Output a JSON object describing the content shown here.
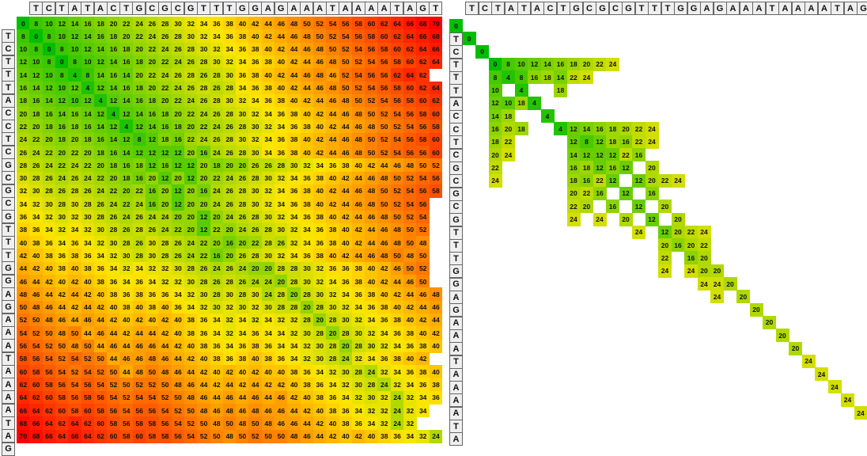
{
  "top_sequence": "TCTATACTGCGCGTTTGGAGAAATAAAATAGT",
  "left_sequence": "TTCTTTACCTCGCGCGTTTGGAGAAATAAAATAGT",
  "left_matrix": {
    "rows": [
      [
        0,
        8,
        10,
        12,
        14,
        16,
        18,
        20,
        22,
        24,
        26,
        28,
        30,
        32,
        34,
        36,
        38,
        40,
        42,
        44,
        46,
        48,
        50,
        52,
        54,
        56,
        58,
        60,
        62,
        64,
        66,
        68,
        70
      ],
      [
        8,
        0,
        8,
        10,
        12,
        14,
        16,
        18,
        20,
        22,
        24,
        26,
        28,
        30,
        32,
        34,
        36,
        38,
        40,
        42,
        44,
        46,
        48,
        50,
        52,
        54,
        56,
        58,
        60,
        62,
        64,
        66,
        68
      ],
      [
        10,
        8,
        0,
        8,
        10,
        12,
        14,
        16,
        18,
        20,
        22,
        24,
        26,
        28,
        30,
        32,
        34,
        36,
        38,
        40,
        42,
        44,
        46,
        48,
        50,
        52,
        54,
        56,
        58,
        60,
        62,
        64,
        66
      ],
      [
        12,
        10,
        8,
        0,
        8,
        10,
        12,
        14,
        16,
        18,
        20,
        22,
        24,
        26,
        28,
        30,
        32,
        34,
        36,
        38,
        40,
        42,
        44,
        46,
        48,
        50,
        52,
        54,
        56,
        58,
        60,
        62,
        64
      ],
      [
        14,
        12,
        10,
        8,
        4,
        8,
        14,
        16,
        14,
        20,
        22,
        24,
        26,
        28,
        26,
        28,
        30,
        36,
        38,
        40,
        42,
        44,
        46,
        48,
        46,
        52,
        54,
        56,
        56,
        62,
        64,
        62
      ],
      [
        16,
        14,
        12,
        10,
        12,
        4,
        12,
        14,
        16,
        18,
        20,
        22,
        24,
        26,
        28,
        26,
        28,
        34,
        36,
        38,
        40,
        42,
        44,
        46,
        48,
        50,
        52,
        54,
        56,
        58,
        60,
        62,
        64
      ],
      [
        18,
        16,
        14,
        12,
        10,
        12,
        4,
        12,
        14,
        16,
        18,
        20,
        22,
        24,
        26,
        28,
        30,
        32,
        34,
        36,
        38,
        40,
        42,
        44,
        46,
        48,
        50,
        52,
        54,
        56,
        58,
        60,
        62
      ],
      [
        20,
        18,
        16,
        14,
        16,
        14,
        12,
        4,
        12,
        14,
        16,
        18,
        20,
        22,
        24,
        26,
        28,
        30,
        32,
        34,
        36,
        38,
        40,
        42,
        44,
        46,
        48,
        50,
        52,
        54,
        56,
        58,
        60
      ],
      [
        22,
        20,
        18,
        16,
        18,
        16,
        14,
        12,
        4,
        12,
        14,
        16,
        18,
        20,
        22,
        24,
        26,
        28,
        30,
        32,
        34,
        36,
        38,
        40,
        42,
        44,
        46,
        48,
        50,
        52,
        54,
        56,
        58
      ],
      [
        24,
        22,
        20,
        18,
        20,
        18,
        16,
        14,
        12,
        8,
        12,
        18,
        16,
        22,
        24,
        26,
        28,
        30,
        32,
        34,
        36,
        38,
        40,
        42,
        44,
        46,
        48,
        50,
        52,
        54,
        56,
        58,
        60
      ],
      [
        26,
        24,
        22,
        20,
        22,
        20,
        18,
        16,
        14,
        12,
        12,
        12,
        12,
        20,
        16,
        24,
        26,
        28,
        30,
        34,
        36,
        38,
        40,
        42,
        44,
        46,
        48,
        50,
        52,
        54,
        56,
        56,
        60
      ],
      [
        28,
        26,
        24,
        22,
        24,
        22,
        20,
        18,
        16,
        18,
        12,
        16,
        12,
        12,
        20,
        18,
        20,
        20,
        26,
        26,
        28,
        30,
        32,
        34,
        36,
        38,
        40,
        42,
        44,
        46,
        48,
        50,
        52,
        54,
        56,
        58
      ],
      [
        30,
        28,
        26,
        24,
        26,
        24,
        22,
        20,
        18,
        16,
        20,
        12,
        20,
        12,
        20,
        22,
        24,
        26,
        28,
        30,
        32,
        34,
        36,
        38,
        40,
        42,
        44,
        46,
        48,
        50,
        52,
        54,
        56
      ],
      [
        32,
        30,
        28,
        26,
        28,
        26,
        24,
        22,
        20,
        22,
        16,
        20,
        12,
        20,
        16,
        24,
        26,
        28,
        30,
        32,
        34,
        36,
        38,
        40,
        42,
        44,
        46,
        48,
        50,
        52,
        54,
        56,
        58
      ],
      [
        34,
        32,
        30,
        28,
        30,
        28,
        26,
        24,
        22,
        24,
        16,
        20,
        12,
        20,
        20,
        24,
        26,
        28,
        30,
        32,
        34,
        36,
        38,
        40,
        42,
        44,
        46,
        48,
        50,
        52,
        54,
        56
      ],
      [
        36,
        34,
        32,
        30,
        32,
        30,
        28,
        26,
        24,
        26,
        24,
        24,
        20,
        20,
        12,
        20,
        24,
        26,
        28,
        30,
        32,
        34,
        36,
        38,
        40,
        42,
        44,
        46,
        48,
        50,
        52,
        54
      ],
      [
        38,
        36,
        34,
        32,
        34,
        32,
        30,
        28,
        26,
        28,
        26,
        24,
        22,
        20,
        12,
        22,
        20,
        24,
        26,
        28,
        30,
        32,
        34,
        36,
        38,
        40,
        42,
        44,
        46,
        48,
        50,
        52
      ],
      [
        40,
        38,
        36,
        34,
        36,
        34,
        32,
        30,
        28,
        26,
        30,
        28,
        26,
        24,
        22,
        20,
        16,
        20,
        22,
        28,
        26,
        32,
        34,
        36,
        38,
        40,
        42,
        44,
        46,
        48,
        50,
        48
      ],
      [
        42,
        40,
        38,
        36,
        38,
        36,
        34,
        32,
        30,
        28,
        30,
        28,
        26,
        24,
        22,
        16,
        20,
        26,
        28,
        30,
        32,
        34,
        36,
        38,
        40,
        42,
        44,
        46,
        48,
        50,
        48,
        50
      ],
      [
        44,
        42,
        40,
        38,
        40,
        38,
        36,
        34,
        32,
        34,
        32,
        32,
        30,
        28,
        26,
        24,
        26,
        24,
        20,
        20,
        28,
        28,
        30,
        32,
        36,
        36,
        38,
        40,
        42,
        46,
        50,
        52
      ],
      [
        46,
        44,
        42,
        40,
        42,
        40,
        38,
        36,
        34,
        36,
        34,
        32,
        32,
        30,
        28,
        26,
        28,
        26,
        24,
        24,
        20,
        28,
        30,
        32,
        34,
        36,
        38,
        40,
        42,
        44,
        46,
        50
      ],
      [
        48,
        46,
        44,
        42,
        44,
        42,
        40,
        38,
        36,
        38,
        36,
        36,
        34,
        32,
        30,
        28,
        30,
        28,
        30,
        24,
        28,
        20,
        28,
        30,
        32,
        34,
        36,
        38,
        40,
        42,
        44,
        46,
        48
      ],
      [
        50,
        48,
        46,
        44,
        42,
        44,
        42,
        40,
        38,
        40,
        38,
        40,
        36,
        34,
        32,
        30,
        32,
        30,
        32,
        30,
        28,
        28,
        20,
        28,
        30,
        32,
        34,
        36,
        38,
        40,
        42,
        44,
        46
      ],
      [
        52,
        50,
        48,
        46,
        44,
        46,
        44,
        42,
        40,
        42,
        40,
        42,
        40,
        38,
        36,
        34,
        32,
        34,
        32,
        34,
        32,
        32,
        28,
        20,
        28,
        30,
        32,
        34,
        36,
        38,
        40,
        42,
        44
      ],
      [
        54,
        52,
        50,
        48,
        50,
        44,
        46,
        44,
        42,
        44,
        44,
        42,
        40,
        38,
        36,
        34,
        32,
        34,
        36,
        34,
        34,
        32,
        30,
        28,
        20,
        28,
        30,
        32,
        34,
        36,
        38,
        40,
        42
      ],
      [
        56,
        54,
        52,
        50,
        48,
        50,
        44,
        46,
        44,
        46,
        46,
        44,
        42,
        40,
        38,
        36,
        34,
        36,
        38,
        36,
        34,
        34,
        32,
        30,
        28,
        20,
        28,
        30,
        32,
        34,
        36,
        38,
        40
      ],
      [
        58,
        56,
        54,
        52,
        54,
        52,
        50,
        44,
        46,
        46,
        48,
        46,
        44,
        42,
        40,
        38,
        36,
        38,
        40,
        38,
        36,
        34,
        32,
        30,
        28,
        24,
        32,
        34,
        36,
        38,
        40,
        42
      ],
      [
        60,
        58,
        56,
        54,
        52,
        54,
        52,
        50,
        44,
        48,
        50,
        48,
        46,
        44,
        42,
        40,
        42,
        40,
        42,
        40,
        40,
        38,
        36,
        34,
        32,
        30,
        28,
        24,
        32,
        34,
        36,
        38,
        40
      ],
      [
        62,
        60,
        58,
        56,
        54,
        56,
        54,
        52,
        50,
        52,
        52,
        50,
        48,
        46,
        44,
        42,
        44,
        42,
        44,
        42,
        42,
        40,
        38,
        36,
        34,
        32,
        30,
        28,
        24,
        32,
        34,
        36,
        38
      ],
      [
        64,
        62,
        60,
        58,
        56,
        58,
        56,
        54,
        52,
        54,
        54,
        52,
        50,
        48,
        46,
        44,
        46,
        44,
        46,
        44,
        46,
        42,
        40,
        38,
        36,
        34,
        32,
        30,
        32,
        24,
        32,
        34,
        36
      ],
      [
        66,
        64,
        62,
        60,
        58,
        60,
        58,
        56,
        54,
        56,
        56,
        54,
        52,
        50,
        48,
        46,
        48,
        46,
        48,
        46,
        46,
        44,
        42,
        40,
        38,
        36,
        34,
        32,
        32,
        24,
        32,
        34
      ],
      [
        68,
        66,
        64,
        62,
        64,
        62,
        60,
        58,
        56,
        58,
        58,
        56,
        54,
        52,
        50,
        48,
        50,
        48,
        50,
        48,
        46,
        46,
        44,
        42,
        40,
        38,
        36,
        34,
        32,
        24,
        32
      ],
      [
        70,
        68,
        66,
        64,
        66,
        64,
        62,
        60,
        58,
        60,
        58,
        58,
        56,
        54,
        52,
        50,
        48,
        50,
        52,
        50,
        50,
        48,
        46,
        44,
        42,
        40,
        42,
        40,
        38,
        36,
        34,
        32,
        24
      ]
    ]
  },
  "right_matrix": {
    "rows": [
      [
        [
          0,
          0
        ]
      ],
      [
        [
          1,
          0
        ]
      ],
      [
        [
          2,
          0
        ]
      ],
      [
        [
          3,
          0
        ],
        [
          4,
          8
        ],
        [
          5,
          10
        ],
        [
          6,
          12
        ],
        [
          7,
          14
        ],
        [
          8,
          16
        ],
        [
          9,
          18
        ],
        [
          10,
          20
        ],
        [
          11,
          22
        ],
        [
          12,
          24
        ]
      ],
      [
        [
          3,
          8
        ],
        [
          4,
          4
        ],
        [
          5,
          8
        ],
        [
          6,
          16
        ],
        [
          7,
          18
        ],
        [
          8,
          14
        ],
        [
          9,
          22
        ],
        [
          10,
          24
        ]
      ],
      [
        [
          3,
          10
        ],
        [
          5,
          4
        ],
        [
          8,
          18
        ]
      ],
      [
        [
          3,
          12
        ],
        [
          4,
          10
        ],
        [
          5,
          18
        ],
        [
          6,
          4
        ]
      ],
      [
        [
          3,
          14
        ],
        [
          4,
          18
        ],
        [
          7,
          4
        ]
      ],
      [
        [
          3,
          16
        ],
        [
          4,
          20
        ],
        [
          5,
          18
        ],
        [
          8,
          4
        ],
        [
          9,
          12
        ],
        [
          10,
          14
        ],
        [
          11,
          16
        ],
        [
          12,
          18
        ],
        [
          13,
          20
        ],
        [
          14,
          22
        ],
        [
          15,
          24
        ]
      ],
      [
        [
          3,
          18
        ],
        [
          4,
          22
        ],
        [
          9,
          12
        ],
        [
          10,
          8
        ],
        [
          11,
          12
        ],
        [
          12,
          18
        ],
        [
          13,
          16
        ],
        [
          14,
          22
        ],
        [
          15,
          24
        ]
      ],
      [
        [
          3,
          20
        ],
        [
          4,
          24
        ],
        [
          9,
          14
        ],
        [
          10,
          12
        ],
        [
          11,
          12
        ],
        [
          12,
          12
        ],
        [
          13,
          22
        ],
        [
          14,
          16
        ]
      ],
      [
        [
          3,
          22
        ],
        [
          9,
          16
        ],
        [
          10,
          18
        ],
        [
          11,
          12
        ],
        [
          12,
          16
        ],
        [
          13,
          12
        ],
        [
          15,
          20
        ]
      ],
      [
        [
          3,
          24
        ],
        [
          9,
          18
        ],
        [
          10,
          16
        ],
        [
          11,
          22
        ],
        [
          12,
          12
        ],
        [
          14,
          12
        ],
        [
          15,
          20
        ],
        [
          16,
          22
        ],
        [
          17,
          24
        ]
      ],
      [
        [
          9,
          20
        ],
        [
          10,
          22
        ],
        [
          11,
          16
        ],
        [
          13,
          12
        ],
        [
          15,
          16
        ]
      ],
      [
        [
          9,
          22
        ],
        [
          10,
          20
        ],
        [
          12,
          16
        ],
        [
          14,
          12
        ],
        [
          16,
          20
        ]
      ],
      [
        [
          9,
          24
        ],
        [
          11,
          24
        ],
        [
          13,
          20
        ],
        [
          15,
          12
        ],
        [
          17,
          20
        ]
      ],
      [
        [
          14,
          24
        ],
        [
          16,
          12
        ],
        [
          17,
          20
        ],
        [
          18,
          22
        ],
        [
          19,
          24
        ]
      ],
      [
        [
          16,
          20
        ],
        [
          17,
          16
        ],
        [
          18,
          20
        ],
        [
          19,
          22
        ]
      ],
      [
        [
          16,
          22
        ],
        [
          18,
          16
        ],
        [
          19,
          20
        ]
      ],
      [
        [
          16,
          24
        ],
        [
          18,
          24
        ],
        [
          19,
          20
        ],
        [
          20,
          20
        ]
      ],
      [
        [
          19,
          24
        ],
        [
          20,
          24
        ],
        [
          21,
          20
        ]
      ],
      [
        [
          20,
          24
        ],
        [
          22,
          20
        ]
      ],
      [
        [
          23,
          20
        ]
      ],
      [
        [
          24,
          20
        ]
      ],
      [
        [
          25,
          20
        ]
      ],
      [
        [
          26,
          20
        ]
      ],
      [
        [
          27,
          24
        ]
      ],
      [
        [
          28,
          24
        ]
      ],
      [
        [
          29,
          24
        ]
      ],
      [
        [
          30,
          24
        ]
      ],
      [
        [
          31,
          24
        ]
      ],
      [
        [
          32,
          24
        ]
      ],
      [
        [
          33,
          24
        ]
      ]
    ]
  }
}
